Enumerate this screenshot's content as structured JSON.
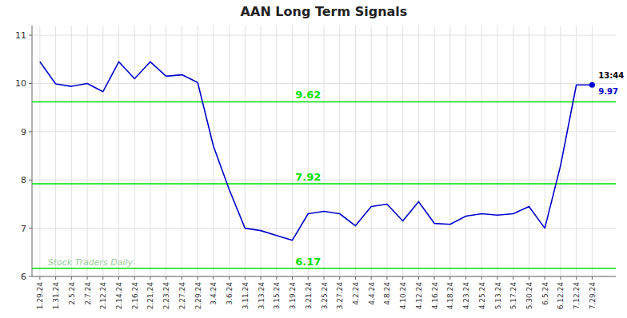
{
  "chart_data": {
    "type": "line",
    "title": "AAN Long Term Signals",
    "categories": [
      "1.29.24",
      "1.31.24",
      "2.5.24",
      "2.7.24",
      "2.12.24",
      "2.14.24",
      "2.16.24",
      "2.21.24",
      "2.23.24",
      "2.27.24",
      "2.29.24",
      "3.4.24",
      "3.6.24",
      "3.11.24",
      "3.13.24",
      "3.15.24",
      "3.19.24",
      "3.21.24",
      "3.25.24",
      "3.27.24",
      "4.2.24",
      "4.4.24",
      "4.8.24",
      "4.10.24",
      "4.12.24",
      "4.16.24",
      "4.18.24",
      "4.23.24",
      "4.25.24",
      "5.13.24",
      "5.17.24",
      "5.30.24",
      "6.5.24",
      "6.12.24",
      "7.12.24",
      "7.29.24"
    ],
    "values": [
      10.45,
      9.99,
      9.94,
      10.0,
      9.83,
      10.45,
      10.1,
      10.45,
      10.15,
      10.18,
      10.02,
      8.7,
      7.8,
      7.0,
      6.95,
      6.85,
      6.75,
      7.3,
      7.35,
      7.3,
      7.05,
      7.45,
      7.5,
      7.15,
      7.55,
      7.1,
      7.08,
      7.25,
      7.3,
      7.27,
      7.3,
      7.45,
      7.0,
      8.3,
      9.97,
      9.97
    ],
    "color": "#0000cc",
    "reference_lines": [
      {
        "value": 9.62,
        "label": "9.62",
        "color": "#00dd00"
      },
      {
        "value": 7.92,
        "label": "7.92",
        "color": "#00dd00"
      },
      {
        "value": 6.17,
        "label": "6.17",
        "color": "#00dd00"
      }
    ],
    "annotations": [
      {
        "text": "13:44"
      },
      {
        "text": "9.97",
        "value": 9.97,
        "color": "#0000cc"
      },
      {
        "text": "Stock Traders Daily",
        "color": "#99cc99"
      }
    ],
    "ylim": [
      6.0,
      11.2
    ],
    "yticks": [
      6,
      7,
      8,
      9,
      10,
      11
    ],
    "grid": true
  }
}
